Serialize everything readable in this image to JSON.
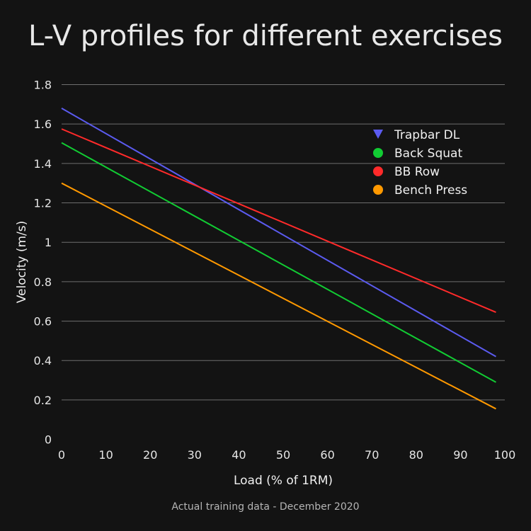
{
  "title": "L-V profiles for different exercises",
  "caption": "Actual training data - December 2020",
  "chart_data": {
    "type": "line",
    "title": "L-V profiles for different exercises",
    "xlabel": "Load (% of 1RM)",
    "ylabel": "Velocity (m/s)",
    "xlim": [
      0,
      100
    ],
    "ylim": [
      0,
      1.8
    ],
    "xticks": [
      "0",
      "10",
      "20",
      "30",
      "40",
      "50",
      "60",
      "70",
      "80",
      "90",
      "100"
    ],
    "yticks": [
      "0",
      "0.2",
      "0.4",
      "0.6",
      "0.8",
      "1",
      "1.2",
      "1.4",
      "1.6",
      "1.8"
    ],
    "grid": "horizontal",
    "legend_position": "top-right",
    "series": [
      {
        "name": "Trapbar DL",
        "color": "#5b5bf0",
        "marker": "triangle-down",
        "x": [
          0,
          98
        ],
        "y": [
          1.68,
          0.42
        ]
      },
      {
        "name": "Back Squat",
        "color": "#11cc33",
        "marker": "circle",
        "x": [
          0,
          98
        ],
        "y": [
          1.505,
          0.29
        ]
      },
      {
        "name": "BB Row",
        "color": "#ff2a2a",
        "marker": "circle",
        "x": [
          0,
          98
        ],
        "y": [
          1.575,
          0.645
        ]
      },
      {
        "name": "Bench Press",
        "color": "#ff9900",
        "marker": "circle",
        "x": [
          0,
          98
        ],
        "y": [
          1.3,
          0.155
        ]
      }
    ]
  }
}
